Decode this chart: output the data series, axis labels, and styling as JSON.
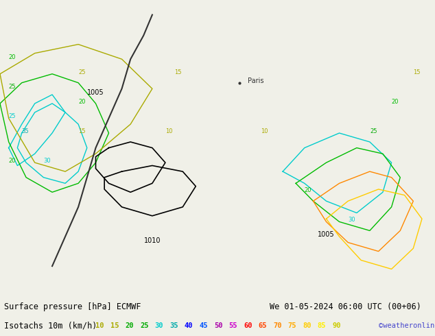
{
  "title_line1": "Surface pressure [hPa] ECMWF",
  "title_line2": "Isotachs 10m (km/h)",
  "date_str": "We 01-05-2024 06:00 UTC (00+06)",
  "credit": "©weatheronline.co.uk",
  "bg_color": "#f0f0e8",
  "map_bg": "#c8e6a0",
  "title_color": "#000000",
  "date_color": "#000000",
  "credit_color": "#4444cc",
  "isotach_values": [
    10,
    15,
    20,
    25,
    30,
    35,
    40,
    45,
    50,
    55,
    60,
    65,
    70,
    75,
    80,
    85,
    90
  ],
  "isotach_colors": [
    "#aaaa00",
    "#aaaa00",
    "#00aa00",
    "#00aa00",
    "#00cccc",
    "#00aaaa",
    "#0000ff",
    "#0055ff",
    "#aa00aa",
    "#cc00cc",
    "#ff0000",
    "#ff4400",
    "#ff8800",
    "#ffaa00",
    "#ffcc00",
    "#ffee00",
    "#ffffff"
  ],
  "contour_line_color": "#000000",
  "pressure_label_color": "#000000",
  "figsize": [
    6.34,
    4.9
  ],
  "dpi": 100
}
